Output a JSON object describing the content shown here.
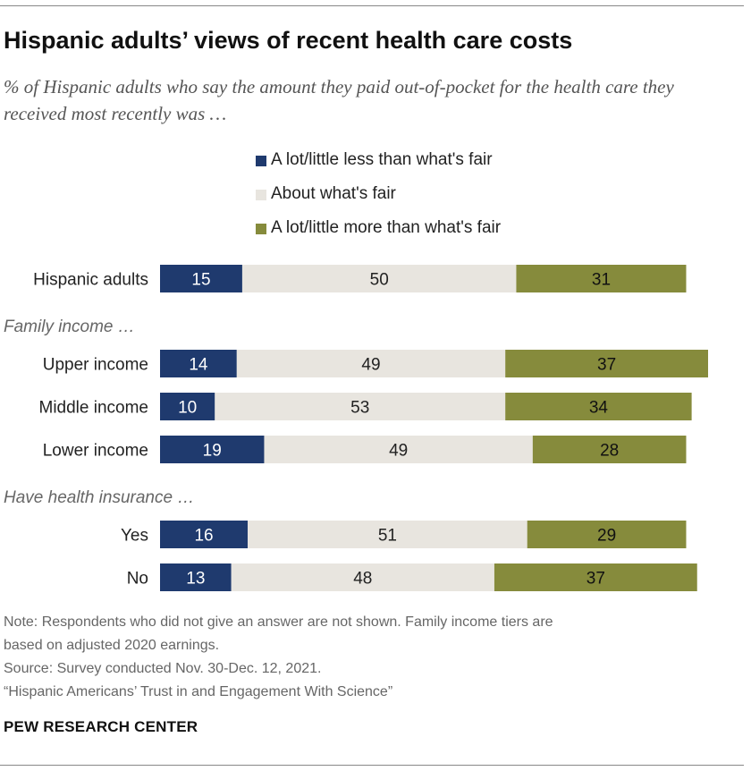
{
  "title": "Hispanic adults’ views of recent health care costs",
  "subtitle": "% of Hispanic adults who say the amount they paid out-of-pocket for the health care they received most recently was …",
  "legend": [
    {
      "label": "A lot/little less than what's fair",
      "color": "#1f3a6e"
    },
    {
      "label": "About what's fair",
      "color": "#e8e5df"
    },
    {
      "label": "A lot/little more than what's fair",
      "color": "#868b3c"
    }
  ],
  "chart_data": {
    "type": "bar",
    "orientation": "horizontal",
    "stacked": true,
    "categories": [
      "Hispanic adults",
      "Upper income",
      "Middle income",
      "Lower income",
      "Yes",
      "No"
    ],
    "groups": [
      {
        "label": "",
        "categories": [
          "Hispanic adults"
        ]
      },
      {
        "label": "Family income …",
        "categories": [
          "Upper income",
          "Middle income",
          "Lower income"
        ]
      },
      {
        "label": "Have health insurance …",
        "categories": [
          "Yes",
          "No"
        ]
      }
    ],
    "series": [
      {
        "name": "A lot/little less than what's fair",
        "color": "#1f3a6e",
        "label_color": "#ffffff",
        "values": [
          15,
          14,
          10,
          19,
          16,
          13
        ]
      },
      {
        "name": "About what's fair",
        "color": "#e8e5df",
        "label_color": "#222222",
        "values": [
          50,
          49,
          53,
          49,
          51,
          48
        ]
      },
      {
        "name": "A lot/little more than what's fair",
        "color": "#868b3c",
        "label_color": "#111111",
        "values": [
          31,
          37,
          34,
          28,
          29,
          37
        ]
      }
    ],
    "xlim": [
      0,
      100
    ],
    "grid": false,
    "legend_position": "top"
  },
  "footer": {
    "note_line1": "Note: Respondents who did not give an answer are not shown. Family income tiers are",
    "note_line2": "based on adjusted 2020 earnings.",
    "source": "Source: Survey conducted Nov. 30-Dec. 12, 2021.",
    "report": "“Hispanic Americans’ Trust in and Engagement With Science”",
    "brand": "PEW RESEARCH CENTER"
  }
}
